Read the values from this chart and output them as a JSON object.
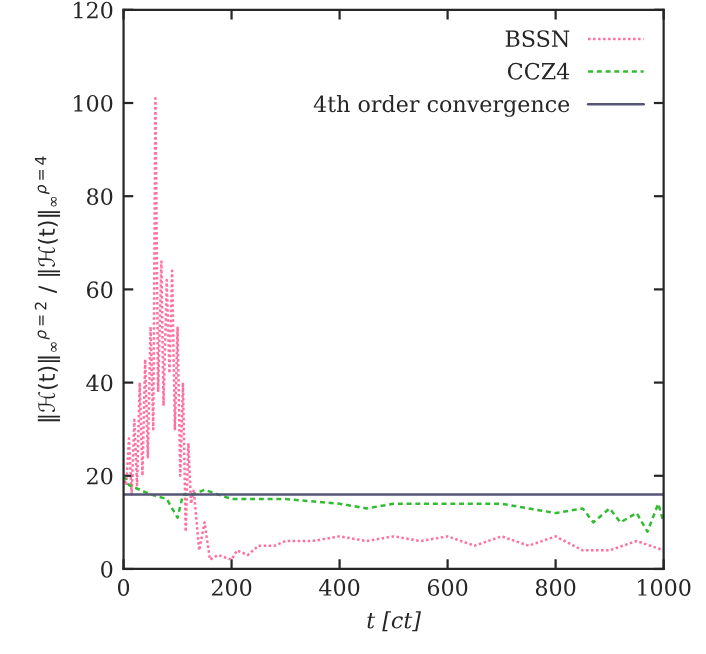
{
  "chart_data": {
    "type": "line",
    "xlabel": "t [ct]",
    "ylabel": "‖ℋ(t)‖$_{∞}$$^{ρ=2}$ / ‖ℋ(t)‖$_{∞}$$^{ρ=4}$",
    "xlim": [
      0,
      1000
    ],
    "ylim": [
      0,
      120
    ],
    "xticks": [
      0,
      200,
      400,
      600,
      800,
      1000
    ],
    "yticks": [
      0,
      20,
      40,
      60,
      80,
      100,
      120
    ],
    "grid": false,
    "legend": "top right",
    "series": [
      {
        "name": "BSSN",
        "color": "#ff6fa0",
        "line_style": "dotted",
        "x": [
          0,
          5,
          10,
          15,
          20,
          25,
          30,
          35,
          40,
          45,
          50,
          55,
          59,
          64,
          70,
          74,
          80,
          85,
          90,
          95,
          100,
          105,
          110,
          115,
          120,
          125,
          130,
          140,
          150,
          160,
          175,
          200,
          210,
          230,
          250,
          280,
          300,
          350,
          400,
          450,
          500,
          550,
          600,
          650,
          700,
          750,
          800,
          850,
          900,
          950,
          1000
        ],
        "values": [
          20,
          18,
          28,
          16,
          32,
          18,
          40,
          20,
          45,
          24,
          52,
          30,
          101,
          38,
          66,
          35,
          62,
          42,
          64,
          30,
          52,
          20,
          40,
          8,
          27,
          14,
          17,
          4,
          10,
          2,
          3,
          2,
          4,
          3,
          5,
          5,
          6,
          6,
          7,
          6,
          7,
          6,
          7,
          5,
          7,
          5,
          7,
          4,
          4,
          6,
          4
        ]
      },
      {
        "name": "CCZ4",
        "color": "#33bb33",
        "line_style": "dashed",
        "x": [
          0,
          10,
          50,
          80,
          100,
          110,
          130,
          150,
          200,
          300,
          400,
          450,
          500,
          550,
          600,
          700,
          750,
          800,
          850,
          870,
          900,
          920,
          950,
          970,
          990,
          1000
        ],
        "values": [
          20,
          18,
          16,
          15,
          11,
          16,
          16,
          17,
          15,
          15,
          14,
          13,
          14,
          14,
          14,
          14,
          13,
          12,
          13,
          10,
          13,
          10,
          12,
          8,
          14,
          10
        ]
      },
      {
        "name": "4th order convergence",
        "color": "#555577",
        "line_style": "solid",
        "x": [
          0,
          1000
        ],
        "values": [
          16,
          16
        ]
      }
    ]
  }
}
